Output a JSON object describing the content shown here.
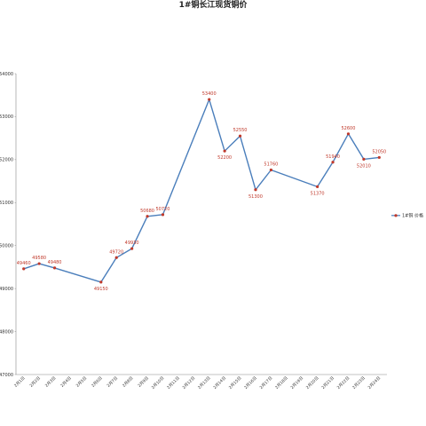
{
  "chart_data": {
    "type": "line",
    "title": "1#铜长江现货铜价",
    "xlabel": "",
    "ylabel": "",
    "ylim": [
      47000,
      54000
    ],
    "yticks": [
      47000,
      48000,
      49000,
      50000,
      51000,
      52000,
      53000,
      54000
    ],
    "grid": false,
    "legend_position": "right",
    "line_color": "#4a7ebb",
    "marker_color": "#c0392b",
    "label_color": "#c0392b",
    "categories": [
      "2月1日",
      "2月2日",
      "2月3日",
      "2月4日",
      "2月5日",
      "2月6日",
      "2月7日",
      "2月8日",
      "2月9日",
      "2月10日",
      "2月11日",
      "2月12日",
      "2月13日",
      "2月14日",
      "2月15日",
      "2月16日",
      "2月17日",
      "2月18日",
      "2月19日",
      "2月20日",
      "2月21日",
      "2月22日",
      "2月23日",
      "2月24日"
    ],
    "series": [
      {
        "name": "1#铜 价格",
        "points": [
          {
            "x": "2月1日",
            "y": 49460
          },
          {
            "x": "2月2日",
            "y": 49580
          },
          {
            "x": "2月3日",
            "y": 49480
          },
          {
            "x": "2月6日",
            "y": 49150
          },
          {
            "x": "2月7日",
            "y": 49720
          },
          {
            "x": "2月8日",
            "y": 49930
          },
          {
            "x": "2月9日",
            "y": 50680
          },
          {
            "x": "2月10日",
            "y": 50720
          },
          {
            "x": "2月13日",
            "y": 53400
          },
          {
            "x": "2月14日",
            "y": 52200
          },
          {
            "x": "2月15日",
            "y": 52550
          },
          {
            "x": "2月16日",
            "y": 51300
          },
          {
            "x": "2月17日",
            "y": 51760
          },
          {
            "x": "2月20日",
            "y": 51370
          },
          {
            "x": "2月21日",
            "y": 51940
          },
          {
            "x": "2月22日",
            "y": 52600
          },
          {
            "x": "2月23日",
            "y": 52010
          },
          {
            "x": "2月24日",
            "y": 52050
          }
        ]
      }
    ]
  }
}
